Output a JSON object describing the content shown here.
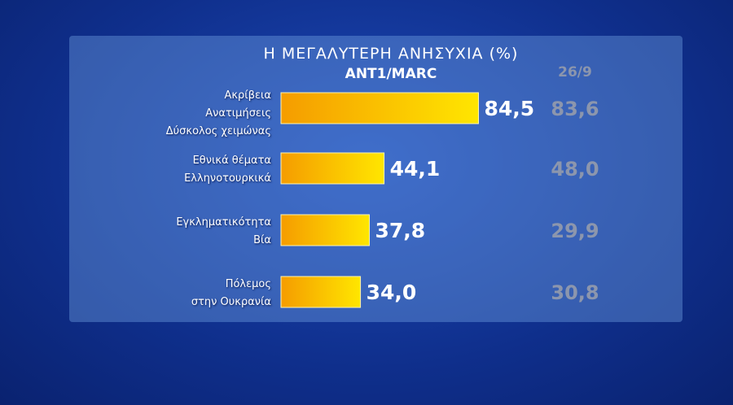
{
  "chart_data": {
    "type": "bar",
    "title": "Η ΜΕΓΑΛΥΤΕΡΗ ΑΝΗΣΥΧΙΑ (%)",
    "subtitle": "ANT1/MARC",
    "categories": [
      "Ακρίβεια\nΑνατιμήσεις\nΔύσκολος χειμώνας",
      "Εθνικά θέματα\nΕλληνοτουρκικά",
      "Εγκληματικότητα\nΒία",
      "Πόλεμος\nστην Ουκρανία"
    ],
    "values": [
      84.5,
      44.1,
      37.8,
      34.0
    ],
    "value_labels": [
      "84,5",
      "44,1",
      "37,8",
      "34,0"
    ],
    "color": "#f59c00",
    "previous": {
      "name": "26/9",
      "values": [
        83.6,
        48.0,
        29.9,
        30.8
      ],
      "value_labels": [
        "83,6",
        "48,0",
        "29,9",
        "30,8"
      ]
    }
  }
}
